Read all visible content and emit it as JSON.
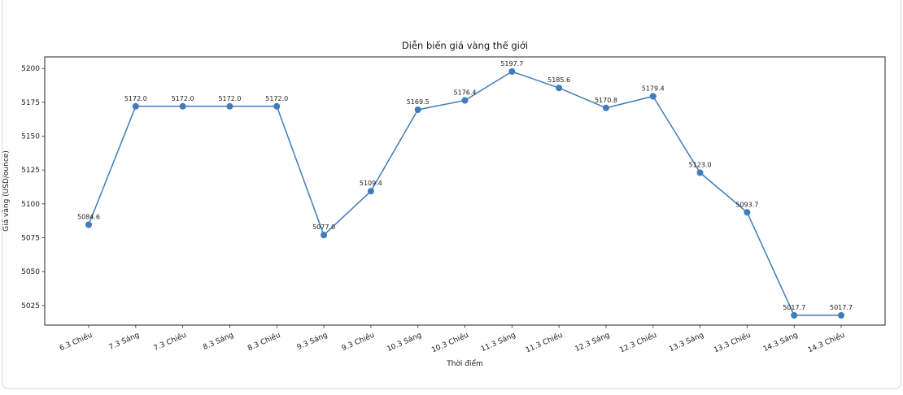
{
  "chart_data": {
    "type": "line",
    "title": "Diễn biến giá vàng thế giới",
    "xlabel": "Thời điểm",
    "ylabel": "Giá vàng (USD/ounce)",
    "categories": [
      "6.3 Chiều",
      "7.3 Sáng",
      "7.3 Chiều",
      "8.3 Sáng",
      "8.3 Chiều",
      "9.3 Sáng",
      "9.3 Chiều",
      "10.3 Sáng",
      "10.3 Chiều",
      "11.3 Sáng",
      "11.3 Chiều",
      "12.3 Sáng",
      "12.3 Chiều",
      "13.3 Sáng",
      "13.3 Chiều",
      "14.3 Sáng",
      "14.3 Chiều"
    ],
    "values": [
      5084.6,
      5172.0,
      5172.0,
      5172.0,
      5172.0,
      5077.0,
      5109.4,
      5169.5,
      5176.4,
      5197.7,
      5185.6,
      5170.8,
      5179.4,
      5123.0,
      5093.7,
      5017.7,
      5017.7
    ],
    "yticks": [
      5025,
      5050,
      5075,
      5100,
      5125,
      5150,
      5175,
      5200
    ],
    "ylim": [
      5010.5,
      5208.5
    ],
    "grid": false,
    "legend_position": "none",
    "line_color": "#3f7cb9",
    "marker": "circle",
    "label_decimals": 1,
    "x_tick_rotation": -24,
    "text_color": "#1a1a1a",
    "spine_color": "#262626"
  }
}
